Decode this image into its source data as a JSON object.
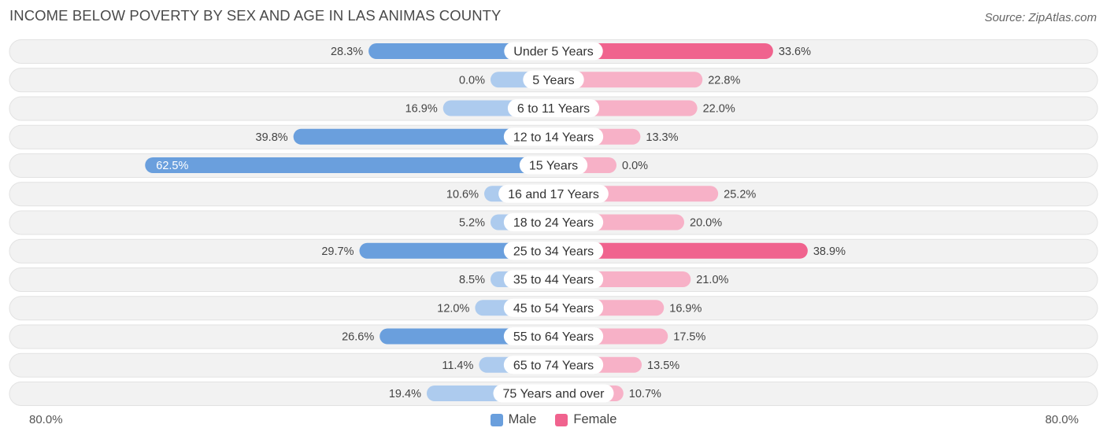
{
  "title": "INCOME BELOW POVERTY BY SEX AND AGE IN LAS ANIMAS COUNTY",
  "source": "Source: ZipAtlas.com",
  "colors": {
    "male_strong": "#6a9fdd",
    "male_light": "#adcbee",
    "female_strong": "#f0638e",
    "female_light": "#f7b1c7",
    "row_bg": "#f2f2f2",
    "row_border": "#e2e2e2"
  },
  "chart_data": {
    "type": "bar",
    "orientation": "horizontal-diverging",
    "title": "INCOME BELOW POVERTY BY SEX AND AGE IN LAS ANIMAS COUNTY",
    "axis_max": 80.0,
    "axis_left_label": "80.0%",
    "axis_right_label": "80.0%",
    "categories": [
      "Under 5 Years",
      "5 Years",
      "6 to 11 Years",
      "12 to 14 Years",
      "15 Years",
      "16 and 17 Years",
      "18 to 24 Years",
      "25 to 34 Years",
      "35 to 44 Years",
      "45 to 54 Years",
      "55 to 64 Years",
      "65 to 74 Years",
      "75 Years and over"
    ],
    "series": [
      {
        "name": "Male",
        "values": [
          28.3,
          0.0,
          16.9,
          39.8,
          62.5,
          10.6,
          5.2,
          29.7,
          8.5,
          12.0,
          26.6,
          11.4,
          19.4
        ],
        "labels": [
          "28.3%",
          "0.0%",
          "16.9%",
          "39.8%",
          "62.5%",
          "10.6%",
          "5.2%",
          "29.7%",
          "8.5%",
          "12.0%",
          "26.6%",
          "11.4%",
          "19.4%"
        ]
      },
      {
        "name": "Female",
        "values": [
          33.6,
          22.8,
          22.0,
          13.3,
          0.0,
          25.2,
          20.0,
          38.9,
          21.0,
          16.9,
          17.5,
          13.5,
          10.7
        ],
        "labels": [
          "33.6%",
          "22.8%",
          "22.0%",
          "13.3%",
          "0.0%",
          "25.2%",
          "20.0%",
          "38.9%",
          "21.0%",
          "16.9%",
          "17.5%",
          "13.5%",
          "10.7%"
        ]
      }
    ],
    "legend": [
      "Male",
      "Female"
    ],
    "legend_position": "bottom-center"
  }
}
